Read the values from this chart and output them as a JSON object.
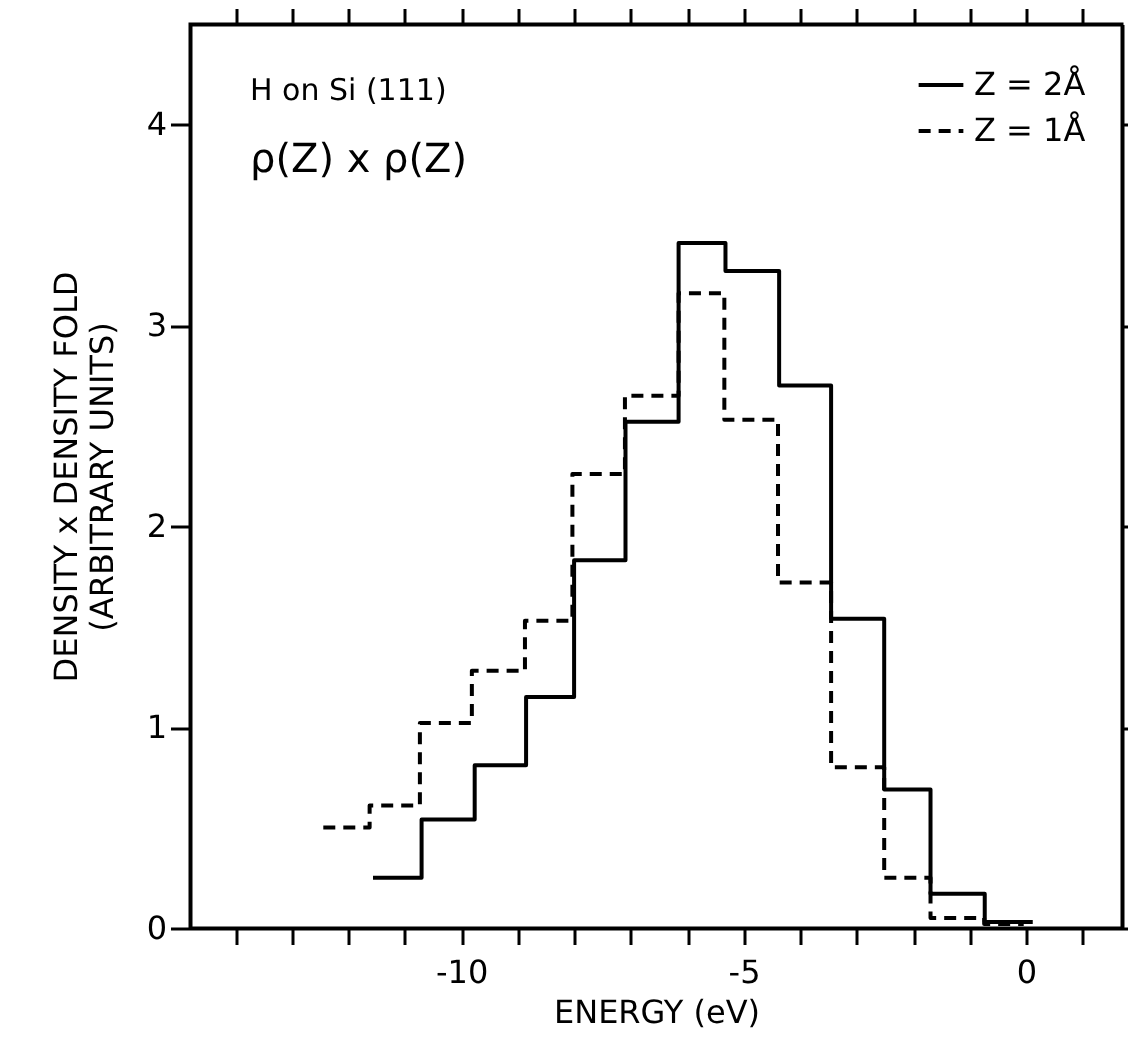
{
  "chart_data": {
    "type": "step",
    "xlabel": "ENERGY (eV)",
    "ylabel": "DENSITY x DENSITY FOLD\n(ARBITRARY UNITS)",
    "annotations": [
      "H on Si (111)",
      "ρ(Z) x ρ(Z)"
    ],
    "xlim": [
      -14.8,
      1.7
    ],
    "ylim": [
      0,
      4.5
    ],
    "xticks": [
      {
        "value": -14,
        "label": null
      },
      {
        "value": -13,
        "label": null
      },
      {
        "value": -12,
        "label": null
      },
      {
        "value": -11,
        "label": null
      },
      -10,
      {
        "value": -9,
        "label": null
      },
      {
        "value": -8,
        "label": null
      },
      {
        "value": -7,
        "label": null
      },
      {
        "value": -6,
        "label": null
      },
      -5,
      {
        "value": -4,
        "label": null
      },
      {
        "value": -3,
        "label": null
      },
      {
        "value": -2,
        "label": null
      },
      {
        "value": -1,
        "label": null
      },
      0,
      {
        "value": 1,
        "label": null
      }
    ],
    "yticks": [
      0,
      1,
      2,
      3,
      4
    ],
    "grid": false,
    "legend": "top right",
    "series": [
      {
        "name": "Z = 2Å",
        "color": "#000000",
        "line_style": "solid",
        "x": [
          -11.56,
          -10.7,
          -9.76,
          -8.85,
          -8.0,
          -7.09,
          -6.15,
          -5.32,
          -4.37,
          -3.45,
          -2.51,
          -1.69,
          -0.73,
          0.12
        ],
        "values": [
          0.25,
          0.54,
          0.81,
          1.15,
          1.83,
          2.52,
          3.41,
          3.27,
          2.7,
          1.54,
          0.69,
          0.17,
          0.03,
          0.03
        ]
      },
      {
        "name": "Z = 1Å",
        "color": "#000000",
        "line_style": "dashed",
        "x": [
          -12.44,
          -11.62,
          -10.73,
          -9.81,
          -8.87,
          -8.03,
          -7.1,
          -6.15,
          -5.34,
          -4.39,
          -3.45,
          -2.51,
          -1.69,
          -0.74,
          -0.04
        ],
        "values": [
          0.5,
          0.61,
          1.02,
          1.28,
          1.53,
          2.26,
          2.65,
          3.16,
          2.53,
          1.72,
          0.8,
          0.25,
          0.05,
          0.02,
          0.02
        ]
      }
    ]
  }
}
